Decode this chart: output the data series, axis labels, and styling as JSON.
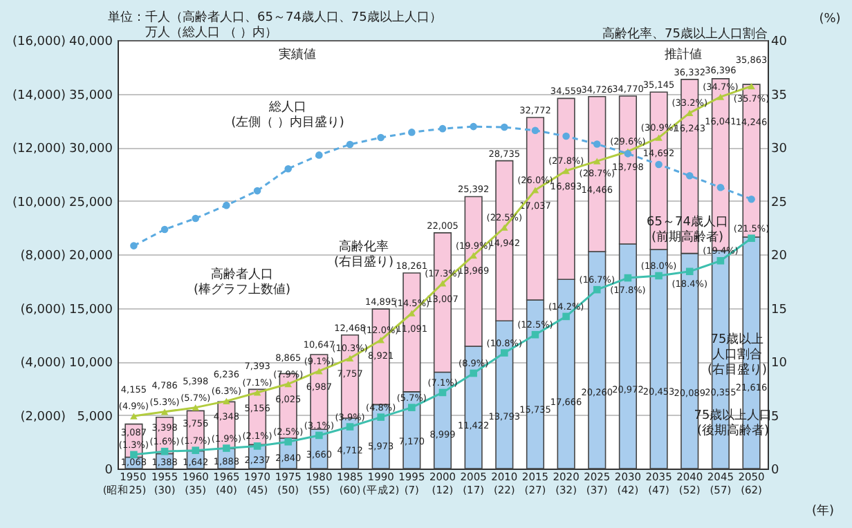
{
  "chart_data": {
    "type": "bar",
    "stacked": true,
    "categories": [
      "1950\n(昭和25)",
      "1955\n(30)",
      "1960\n(35)",
      "1965\n(40)",
      "1970\n(45)",
      "1975\n(50)",
      "1980\n(55)",
      "1985\n(60)",
      "1990\n(平成2)",
      "1995\n(7)",
      "2000\n(12)",
      "2005\n(17)",
      "2010\n(22)",
      "2015\n(27)",
      "2020\n(32)",
      "2025\n(37)",
      "2030\n(42)",
      "2035\n(47)",
      "2040\n(52)",
      "2045\n(57)",
      "2050\n(62)"
    ],
    "series": [
      {
        "color": "#a9cdee",
        "values": [
          1068,
          1388,
          1642,
          1888,
          2237,
          2840,
          3660,
          4712,
          5973,
          7170,
          8999,
          11422,
          13793,
          15735,
          17666,
          20260,
          20972,
          20453,
          20089,
          20355,
          21616
        ],
        "value_labels": [
          "1,068",
          "1,388",
          "1,642",
          "1,888",
          "2,237",
          "2,840",
          "3,660",
          "4,712",
          "5,973",
          "7,170",
          "8,999",
          "11,422",
          "13,793",
          "15,735",
          "17,666",
          "20,260",
          "20,972",
          "20,453",
          "20,089",
          "20,355",
          "21,616"
        ]
      },
      {
        "color": "#f8c8dc",
        "values": [
          3087,
          3398,
          3756,
          4348,
          5156,
          6025,
          6987,
          7757,
          8921,
          11091,
          13007,
          13969,
          14942,
          17037,
          16893,
          14466,
          13798,
          14692,
          16243,
          16041,
          14246
        ],
        "value_labels": [
          "3,087",
          "3,398",
          "3,756",
          "4,348",
          "5,156",
          "6,025",
          "6,987",
          "7,757",
          "8,921",
          "11,091",
          "13,007",
          "13,969",
          "14,942",
          "17,037",
          "16,893",
          "14,466",
          "13,798",
          "14,692",
          "16,243",
          "16,041",
          "14,246"
        ]
      },
      {
        "type": "line",
        "axis": "y2",
        "color": "#b2cc3e",
        "marker": "triangle",
        "line_style": "solid",
        "values": [
          4.9,
          5.3,
          5.7,
          6.3,
          7.1,
          7.9,
          9.1,
          10.3,
          12.0,
          14.5,
          17.3,
          19.9,
          22.5,
          26.0,
          27.8,
          28.7,
          29.6,
          30.9,
          33.2,
          34.7,
          35.7
        ],
        "value_labels": [
          "(4.9%)",
          "(5.3%)",
          "(5.7%)",
          "(6.3%)",
          "(7.1%)",
          "(7.9%)",
          "(9.1%)",
          "(10.3%)",
          "(12.0%)",
          "(14.5%)",
          "(17.3%)",
          "(19.9%)",
          "(22.5%)",
          "(26.0%)",
          "(27.8%)",
          "(28.7%)",
          "(29.6%)",
          "(30.9%)",
          "(33.2%)",
          "(34.7%)",
          "(35.7%)"
        ]
      },
      {
        "type": "line",
        "axis": "y2",
        "color": "#3dbfae",
        "marker": "square",
        "line_style": "solid",
        "values": [
          1.3,
          1.6,
          1.7,
          1.9,
          2.1,
          2.5,
          3.1,
          3.9,
          4.8,
          5.7,
          7.1,
          8.9,
          10.8,
          12.5,
          14.2,
          16.7,
          17.8,
          18.0,
          18.4,
          19.4,
          21.5
        ],
        "value_labels": [
          "(1.3%)",
          "(1.6%)",
          "(1.7%)",
          "(1.9%)",
          "(2.1%)",
          "(2.5%)",
          "(3.1%)",
          "(3.9%)",
          "(4.8%)",
          "(5.7%)",
          "(7.1%)",
          "(8.9%)",
          "(10.8%)",
          "(12.5%)",
          "(14.2%)",
          "(16.7%)",
          "(17.8%)",
          "(18.0%)",
          "(18.4%)",
          "(19.4%)",
          "(21.5%)"
        ]
      },
      {
        "type": "line",
        "axis": "y3",
        "color": "#5aaae0",
        "marker": "circle",
        "line_style": "dashed",
        "values": [
          8320,
          8928,
          9342,
          9828,
          10372,
          11194,
          11706,
          12105,
          12361,
          12557,
          12693,
          12771,
          12747,
          12627,
          12411,
          12114,
          11758,
          11356,
          10934,
          10496,
          10059
        ]
      }
    ],
    "totals": [
      "4,155",
      "4,786",
      "5,398",
      "6,236",
      "7,393",
      "8,865",
      "10,647",
      "12,468",
      "14,895",
      "18,261",
      "22,005",
      "25,392",
      "28,735",
      "32,772",
      "34,559",
      "34,726",
      "34,770",
      "35,145",
      "36,332",
      "36,396",
      "35,863"
    ],
    "ylim": [
      0,
      40000
    ],
    "yticks": [
      0,
      {
        "value": 5000,
        "label": "5,000"
      },
      {
        "value": 10000,
        "label": "10,000"
      },
      {
        "value": 15000,
        "label": "15,000"
      },
      {
        "value": 20000,
        "label": "20,000"
      },
      {
        "value": 25000,
        "label": "25,000"
      },
      {
        "value": 30000,
        "label": "30,000"
      },
      {
        "value": 35000,
        "label": "35,000"
      },
      {
        "value": 40000,
        "label": "40,000"
      }
    ],
    "y3lim": [
      0,
      16000
    ],
    "y3ticks": [
      {
        "value": 2000,
        "label": "(2,000)"
      },
      {
        "value": 4000,
        "label": "(4,000)"
      },
      {
        "value": 6000,
        "label": "(6,000)"
      },
      {
        "value": 8000,
        "label": "(8,000)"
      },
      {
        "value": 10000,
        "label": "(10,000)"
      },
      {
        "value": 12000,
        "label": "(12,000)"
      },
      {
        "value": 14000,
        "label": "(14,000)"
      },
      {
        "value": 16000,
        "label": "(16,000)"
      }
    ],
    "y2lim": [
      0,
      40
    ],
    "y2ticks": [
      0,
      5,
      10,
      15,
      20,
      25,
      30,
      35,
      40
    ],
    "y2label": "高齢化率、75歳以上人口割合",
    "xlabel": "(年)",
    "grid": "y",
    "legend": false,
    "annotations": [
      "単位：千人（高齢者人口、65～74歳人口、75歳以上人口）",
      "万人（総人口 （ ）内）",
      "(%)",
      "実績値",
      "推計値",
      "総人口(左側（ ）内目盛り)",
      "高齢者人口(棒グラフ上数値)",
      "高齢化率(右目盛り)",
      "65～74歳人口(前期高齢者)",
      "75歳以上人口割合(右目盛り)",
      "75歳以上人口(後期高齢者)"
    ]
  }
}
